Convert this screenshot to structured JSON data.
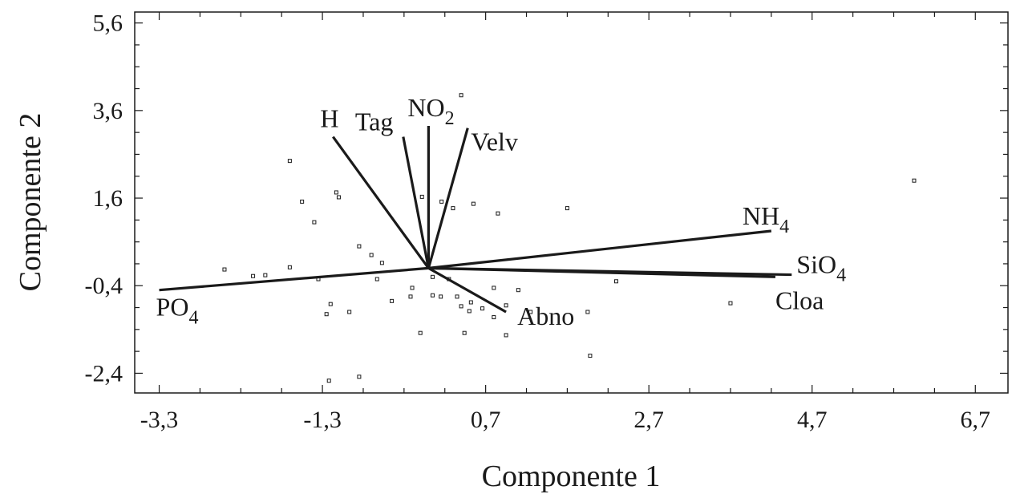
{
  "chart_data": {
    "type": "scatter",
    "subtype": "biplot",
    "title": "",
    "xlabel": "Componente 1",
    "ylabel": "Componente 2",
    "xlim": [
      -3.6,
      7.1
    ],
    "ylim": [
      -2.85,
      5.85
    ],
    "xticks": [
      -3.3,
      -1.3,
      0.7,
      2.7,
      4.7,
      6.7
    ],
    "xtick_labels": [
      "-3,3",
      "-1,3",
      "0,7",
      "2,7",
      "4,7",
      "6,7"
    ],
    "yticks": [
      5.6,
      3.6,
      1.6,
      -0.4,
      -2.4
    ],
    "ytick_labels": [
      "5,6",
      "3,6",
      "1,6",
      "-0,4",
      "-2,4"
    ],
    "grid": false,
    "vectors": [
      {
        "name": "H",
        "sub": "",
        "x": -1.17,
        "y": 3.0
      },
      {
        "name": "Tag",
        "sub": "",
        "x": -0.31,
        "y": 3.0
      },
      {
        "name": "NO",
        "sub": "2",
        "x": 0.0,
        "y": 3.25
      },
      {
        "name": "Velv",
        "sub": "",
        "x": 0.48,
        "y": 3.2
      },
      {
        "name": "NH",
        "sub": "4",
        "x": 4.2,
        "y": 0.85
      },
      {
        "name": "SiO",
        "sub": "4",
        "x": 4.45,
        "y": -0.15
      },
      {
        "name": "Cloa",
        "sub": "",
        "x": 4.25,
        "y": -0.2
      },
      {
        "name": "PO",
        "sub": "4",
        "x": -3.3,
        "y": -0.5
      },
      {
        "name": "Abno",
        "sub": "",
        "x": 0.95,
        "y": -1.0
      }
    ],
    "points": [
      [
        -1.7,
        2.45
      ],
      [
        -1.13,
        1.73
      ],
      [
        -1.1,
        1.62
      ],
      [
        -1.55,
        1.52
      ],
      [
        -1.4,
        1.05
      ],
      [
        -2.5,
        -0.03
      ],
      [
        -2.15,
        -0.18
      ],
      [
        -2.0,
        -0.16
      ],
      [
        -1.7,
        0.02
      ],
      [
        -1.35,
        -0.25
      ],
      [
        -0.85,
        0.5
      ],
      [
        -0.7,
        0.3
      ],
      [
        -0.57,
        0.12
      ],
      [
        -0.63,
        -0.25
      ],
      [
        -1.2,
        -0.82
      ],
      [
        -1.25,
        -1.05
      ],
      [
        -0.97,
        -1.0
      ],
      [
        -0.45,
        -0.75
      ],
      [
        -0.2,
        -0.45
      ],
      [
        -0.22,
        -0.65
      ],
      [
        -0.08,
        1.63
      ],
      [
        0.16,
        1.52
      ],
      [
        0.3,
        1.37
      ],
      [
        0.55,
        1.47
      ],
      [
        0.85,
        1.25
      ],
      [
        1.7,
        1.37
      ],
      [
        0.05,
        -0.2
      ],
      [
        0.25,
        -0.25
      ],
      [
        0.05,
        -0.62
      ],
      [
        0.15,
        -0.65
      ],
      [
        0.35,
        -0.65
      ],
      [
        0.4,
        -0.87
      ],
      [
        0.95,
        -0.85
      ],
      [
        0.8,
        -0.45
      ],
      [
        1.1,
        -0.5
      ],
      [
        0.5,
        -0.98
      ],
      [
        0.52,
        -0.78
      ],
      [
        0.66,
        -0.92
      ],
      [
        0.8,
        -1.12
      ],
      [
        1.25,
        -1.0
      ],
      [
        -0.1,
        -1.48
      ],
      [
        0.44,
        -1.48
      ],
      [
        0.95,
        -1.53
      ],
      [
        1.95,
        -1.0
      ],
      [
        2.3,
        -0.3
      ],
      [
        3.7,
        -0.8
      ],
      [
        1.98,
        -2.0
      ],
      [
        -1.22,
        -2.57
      ],
      [
        -0.85,
        -2.48
      ],
      [
        0.4,
        3.95
      ],
      [
        5.95,
        2.0
      ]
    ],
    "origin": [
      0.0,
      0.0
    ]
  }
}
